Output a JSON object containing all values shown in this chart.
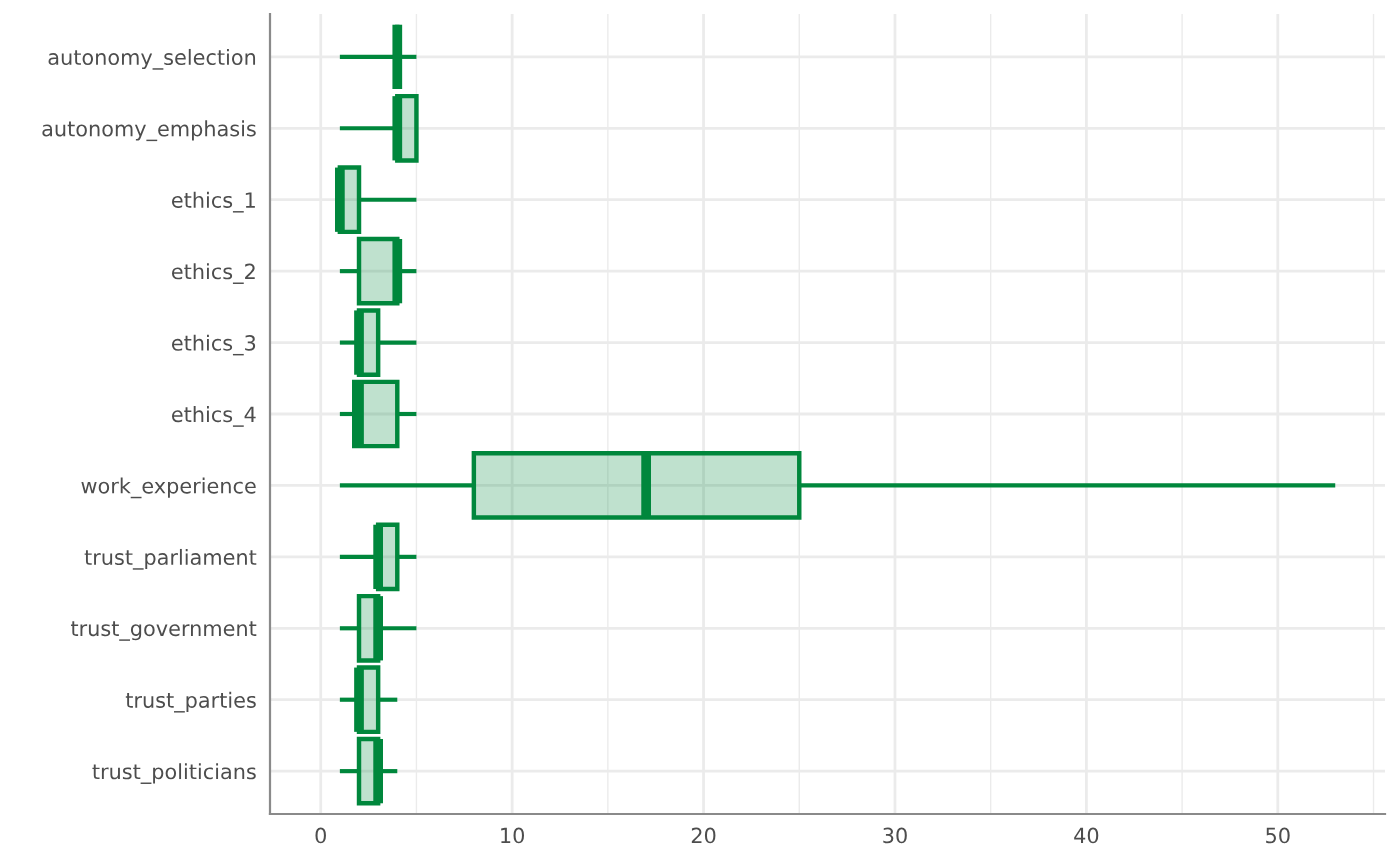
{
  "chart_data": {
    "type": "box",
    "orientation": "horizontal",
    "categories": [
      "autonomy_selection",
      "autonomy_emphasis",
      "ethics_1",
      "ethics_2",
      "ethics_3",
      "ethics_4",
      "work_experience",
      "trust_parliament",
      "trust_government",
      "trust_parties",
      "trust_politicians"
    ],
    "color": "#00873c",
    "boxes": [
      {
        "low": 1,
        "q1": 4,
        "median": 4,
        "q3": 4,
        "high": 5
      },
      {
        "low": 1,
        "q1": 4,
        "median": 4,
        "q3": 5,
        "high": 5
      },
      {
        "low": 1,
        "q1": 1,
        "median": 1,
        "q3": 2,
        "high": 5
      },
      {
        "low": 1,
        "q1": 2,
        "median": 4,
        "q3": 4,
        "high": 5
      },
      {
        "low": 1,
        "q1": 2,
        "median": 2,
        "q3": 3,
        "high": 5
      },
      {
        "low": 1,
        "q1": 1.75,
        "median": 2,
        "q3": 4,
        "high": 5
      },
      {
        "low": 1,
        "q1": 8,
        "median": 17,
        "q3": 25,
        "high": 53
      },
      {
        "low": 1,
        "q1": 3,
        "median": 3,
        "q3": 4,
        "high": 5
      },
      {
        "low": 1,
        "q1": 2,
        "median": 3,
        "q3": 3,
        "high": 5
      },
      {
        "low": 1,
        "q1": 2,
        "median": 2,
        "q3": 3,
        "high": 4
      },
      {
        "low": 1,
        "q1": 2,
        "median": 3,
        "q3": 3,
        "high": 4
      }
    ],
    "xlim": [
      -2.65,
      55.6
    ],
    "xticks": [
      0,
      10,
      20,
      30,
      40,
      50
    ],
    "grid": true
  }
}
